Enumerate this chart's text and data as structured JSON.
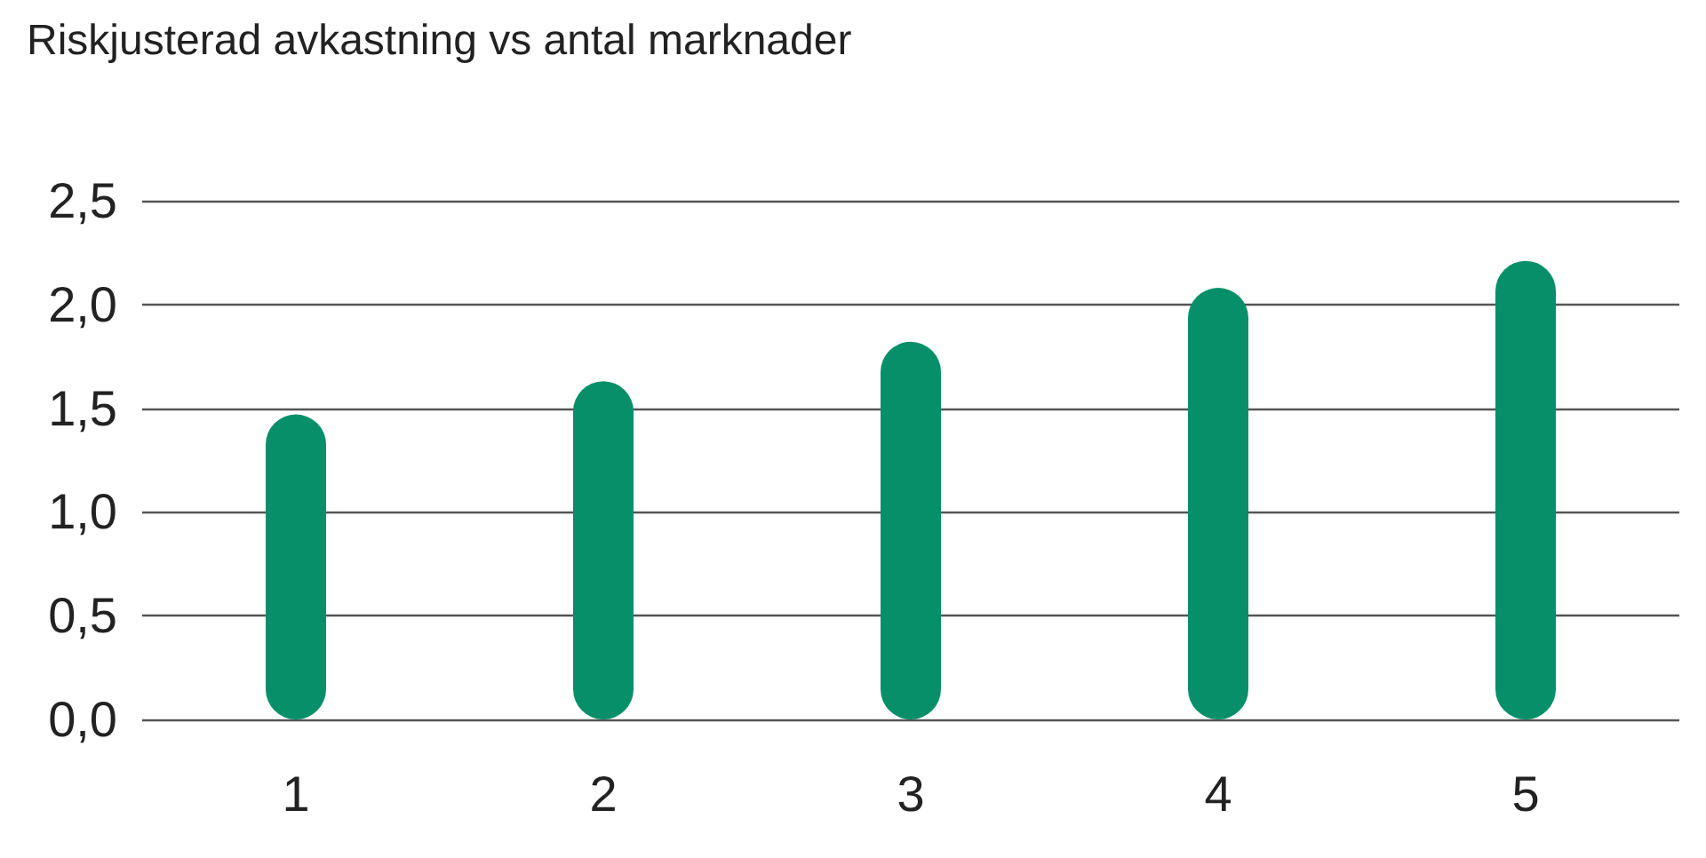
{
  "chart_data": {
    "type": "bar",
    "title": "Riskjusterad avkastning vs antal marknader",
    "categories": [
      "1",
      "2",
      "3",
      "4",
      "5"
    ],
    "values": [
      1.47,
      1.63,
      1.82,
      2.08,
      2.21
    ],
    "color": "#078f6a",
    "ylim": [
      0,
      2.5
    ],
    "yticks": [
      {
        "value": 0,
        "label": "0,0"
      },
      {
        "value": 0.5,
        "label": "0,5"
      },
      {
        "value": 1,
        "label": "1,0"
      },
      {
        "value": 1.5,
        "label": "1,5"
      },
      {
        "value": 2,
        "label": "2,0"
      },
      {
        "value": 2.5,
        "label": "2,5"
      }
    ],
    "grid": "y"
  }
}
